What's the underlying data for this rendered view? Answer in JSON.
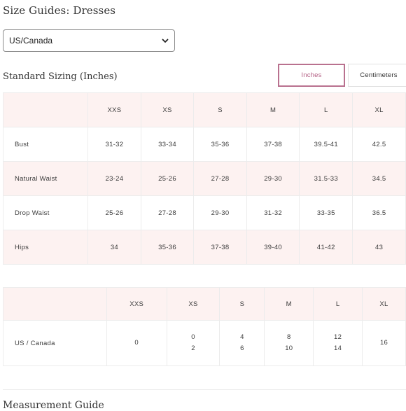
{
  "page_title": "Size Guides: Dresses",
  "region_select": {
    "value": "US/Canada"
  },
  "section_title": "Standard Sizing (Inches)",
  "unit_toggle": {
    "inches": "Inches",
    "centimeters": "Centimeters",
    "active": "inches"
  },
  "measurements_table": {
    "columns": [
      "XXS",
      "XS",
      "S",
      "M",
      "L",
      "XL"
    ],
    "rows": [
      {
        "label": "Bust",
        "values": [
          "31-32",
          "33-34",
          "35-36",
          "37-38",
          "39.5-41",
          "42.5"
        ]
      },
      {
        "label": "Natural Waist",
        "values": [
          "23-24",
          "25-26",
          "27-28",
          "29-30",
          "31.5-33",
          "34.5"
        ]
      },
      {
        "label": "Drop Waist",
        "values": [
          "25-26",
          "27-28",
          "29-30",
          "31-32",
          "33-35",
          "36.5"
        ]
      },
      {
        "label": "Hips",
        "values": [
          "34",
          "35-36",
          "37-38",
          "39-40",
          "41-42",
          "43"
        ]
      }
    ]
  },
  "us_size_table": {
    "columns": [
      "XXS",
      "XS",
      "S",
      "M",
      "L",
      "XL"
    ],
    "row": {
      "label": "US / Canada",
      "values": [
        [
          "0"
        ],
        [
          "0",
          "2"
        ],
        [
          "4",
          "6"
        ],
        [
          "8",
          "10"
        ],
        [
          "12",
          "14"
        ],
        [
          "16"
        ]
      ]
    }
  },
  "next_section_title": "Measurement Guide",
  "colors": {
    "accent": "#b35f84",
    "row_tint": "#fdf2f1",
    "border": "#ececec"
  }
}
